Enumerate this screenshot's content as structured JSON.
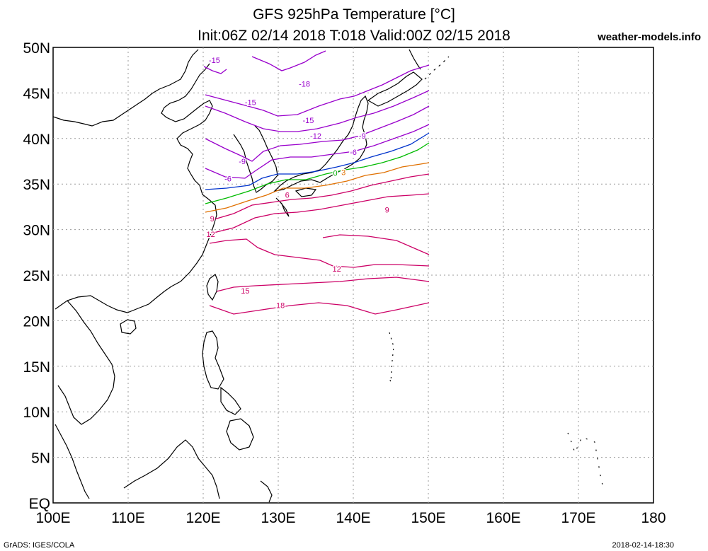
{
  "title_line1": "GFS 925hPa Temperature [°C]",
  "title_line2": "Init:06Z 02/14 2018 T:018 Valid:00Z 02/15 2018",
  "site": "weather-models.info",
  "footer_left": "GrADS: IGES/COLA",
  "footer_right": "2018-02-14-18:30",
  "axes": {
    "lon_labels": [
      "100E",
      "110E",
      "120E",
      "130E",
      "140E",
      "150E",
      "160E",
      "170E",
      "180"
    ],
    "lat_labels": [
      "50N",
      "45N",
      "40N",
      "35N",
      "30N",
      "25N",
      "20N",
      "15N",
      "10N",
      "5N",
      "EQ"
    ],
    "lon_range": [
      100,
      180
    ],
    "lat_range": [
      0,
      50
    ],
    "grid": true
  },
  "contour_labels": [
    {
      "text": "-18",
      "lon": 133.5,
      "lat": 46.0,
      "color": "#9900cc"
    },
    {
      "text": "-15",
      "lon": 121.5,
      "lat": 48.6,
      "color": "#9900cc"
    },
    {
      "text": "-15",
      "lon": 126.3,
      "lat": 44.0,
      "color": "#9900cc"
    },
    {
      "text": "-15",
      "lon": 134.0,
      "lat": 42.0,
      "color": "#9900cc"
    },
    {
      "text": "-12",
      "lon": 135.0,
      "lat": 40.3,
      "color": "#9900cc"
    },
    {
      "text": "-9",
      "lon": 141.2,
      "lat": 40.3,
      "color": "#9900cc"
    },
    {
      "text": "-9",
      "lon": 125.2,
      "lat": 37.5,
      "color": "#9900cc"
    },
    {
      "text": "-6",
      "lon": 140.0,
      "lat": 38.5,
      "color": "#9900cc"
    },
    {
      "text": "-6",
      "lon": 123.3,
      "lat": 35.6,
      "color": "#9900cc"
    },
    {
      "text": "0",
      "lon": 137.6,
      "lat": 36.2,
      "color": "#00aa00"
    },
    {
      "text": "3",
      "lon": 138.7,
      "lat": 36.3,
      "color": "#e07000"
    },
    {
      "text": "6",
      "lon": 131.2,
      "lat": 33.8,
      "color": "#cc0066"
    },
    {
      "text": "9",
      "lon": 144.5,
      "lat": 32.2,
      "color": "#cc0066"
    },
    {
      "text": "9",
      "lon": 121.2,
      "lat": 31.2,
      "color": "#cc0066"
    },
    {
      "text": "12",
      "lon": 121.0,
      "lat": 29.5,
      "color": "#cc0066"
    },
    {
      "text": "12",
      "lon": 137.8,
      "lat": 25.7,
      "color": "#cc0066"
    },
    {
      "text": "15",
      "lon": 125.6,
      "lat": 23.3,
      "color": "#cc0066"
    },
    {
      "text": "18",
      "lon": 130.3,
      "lat": 21.7,
      "color": "#cc0066"
    }
  ]
}
